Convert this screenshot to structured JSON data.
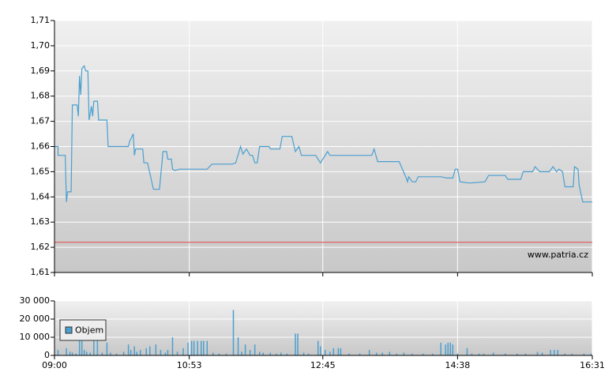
{
  "chart_data": [
    {
      "type": "line",
      "annotation": "www.patria.cz",
      "x": [
        540,
        543,
        543,
        549,
        550,
        551,
        554,
        555,
        559,
        560,
        561,
        562,
        563,
        565,
        566,
        568,
        569,
        571,
        572,
        573,
        576,
        577,
        584,
        585,
        602,
        603,
        606,
        607,
        608,
        614,
        615,
        618,
        623,
        628,
        631,
        634,
        635,
        638,
        639,
        641,
        645,
        668,
        672,
        689,
        692,
        696,
        698,
        701,
        704,
        706,
        708,
        710,
        712,
        720,
        721,
        729,
        731,
        739,
        742,
        745,
        747,
        759,
        763,
        769,
        771,
        806,
        808,
        811,
        829,
        835,
        836,
        837,
        840,
        843,
        845,
        864,
        869,
        874,
        876,
        878,
        880,
        888,
        901,
        904,
        918,
        920,
        931,
        933,
        941,
        943,
        947,
        955,
        958,
        961,
        963,
        966,
        968,
        975,
        976,
        979,
        980,
        983,
        991
      ],
      "series": [
        {
          "color": "#4a9fd0",
          "values": [
            1.66,
            1.66,
            1.6565,
            1.6565,
            1.638,
            1.642,
            1.642,
            1.6765,
            1.6765,
            1.672,
            1.688,
            1.6805,
            1.691,
            1.692,
            1.69,
            1.69,
            1.6705,
            1.676,
            1.672,
            1.678,
            1.678,
            1.6705,
            1.6705,
            1.66,
            1.66,
            1.662,
            1.665,
            1.6565,
            1.659,
            1.659,
            1.6535,
            1.6535,
            1.643,
            1.643,
            1.658,
            1.658,
            1.655,
            1.655,
            1.651,
            1.6505,
            1.651,
            1.651,
            1.653,
            1.653,
            1.6535,
            1.66,
            1.657,
            1.659,
            1.6565,
            1.6565,
            1.6535,
            1.6535,
            1.66,
            1.66,
            1.659,
            1.659,
            1.664,
            1.664,
            1.658,
            1.66,
            1.6565,
            1.6565,
            1.6535,
            1.658,
            1.6565,
            1.6565,
            1.659,
            1.654,
            1.654,
            1.6475,
            1.646,
            1.648,
            1.646,
            1.646,
            1.648,
            1.648,
            1.6475,
            1.6475,
            1.651,
            1.651,
            1.646,
            1.6455,
            1.646,
            1.6485,
            1.6485,
            1.647,
            1.647,
            1.65,
            1.65,
            1.652,
            1.65,
            1.65,
            1.652,
            1.65,
            1.651,
            1.65,
            1.644,
            1.644,
            1.652,
            1.651,
            1.6445,
            1.638,
            1.638
          ]
        }
      ],
      "reference_line": 1.622,
      "reference_color": "#e06060",
      "xlim": [
        540,
        991
      ],
      "ylim": [
        1.61,
        1.71
      ],
      "yticks": [
        {
          "value": 1.61,
          "label": "1,61"
        },
        {
          "value": 1.62,
          "label": "1,62"
        },
        {
          "value": 1.63,
          "label": "1,63"
        },
        {
          "value": 1.64,
          "label": "1,64"
        },
        {
          "value": 1.65,
          "label": "1,65"
        },
        {
          "value": 1.66,
          "label": "1,66"
        },
        {
          "value": 1.67,
          "label": "1,67"
        },
        {
          "value": 1.68,
          "label": "1,68"
        },
        {
          "value": 1.69,
          "label": "1,69"
        },
        {
          "value": 1.7,
          "label": "1,70"
        },
        {
          "value": 1.71,
          "label": "1,71"
        }
      ],
      "grid": true
    },
    {
      "type": "bar",
      "x": [
        543,
        550,
        553,
        555,
        558,
        561,
        563,
        565,
        567,
        570,
        573,
        576,
        580,
        584,
        587,
        592,
        598,
        602,
        604,
        607,
        609,
        612,
        617,
        620,
        625,
        629,
        633,
        635,
        639,
        643,
        648,
        652,
        655,
        657,
        660,
        663,
        665,
        668,
        673,
        678,
        684,
        690,
        694,
        697,
        700,
        704,
        708,
        712,
        715,
        721,
        726,
        730,
        735,
        742,
        744,
        749,
        753,
        761,
        763,
        767,
        771,
        774,
        778,
        780,
        787,
        796,
        804,
        810,
        815,
        821,
        827,
        833,
        840,
        849,
        857,
        864,
        868,
        870,
        872,
        874,
        878,
        886,
        890,
        896,
        900,
        908,
        918,
        928,
        935,
        945,
        949,
        956,
        959,
        962,
        968,
        974,
        984,
        990
      ],
      "series": [
        {
          "name": "Objem",
          "color": "#4a9fd0",
          "values": [
            3000,
            4000,
            2000,
            1500,
            1000,
            8000,
            8000,
            3000,
            2000,
            1500,
            8000,
            8000,
            1500,
            7000,
            1500,
            1000,
            2000,
            6000,
            3000,
            5000,
            2000,
            3000,
            4000,
            5000,
            6000,
            3000,
            1500,
            3000,
            10000,
            2000,
            4000,
            7000,
            8000,
            8000,
            8000,
            8000,
            8000,
            8000,
            1500,
            1000,
            1000,
            25000,
            10000,
            2000,
            6000,
            3000,
            6000,
            2000,
            1500,
            1500,
            1000,
            1500,
            1000,
            12000,
            12000,
            1500,
            1000,
            8000,
            5000,
            3000,
            2000,
            4000,
            4000,
            4000,
            1000,
            1000,
            3000,
            1500,
            1500,
            2000,
            1000,
            1500,
            1000,
            1000,
            1000,
            7000,
            6000,
            7000,
            7000,
            6000,
            1000,
            4000,
            1000,
            1000,
            1000,
            1500,
            1000,
            1000,
            1000,
            2000,
            1500,
            3000,
            3000,
            3000,
            1000,
            1000,
            1000,
            1000
          ]
        }
      ],
      "xlim": [
        540,
        991
      ],
      "xticks": [
        {
          "value": 540,
          "label": "09:00"
        },
        {
          "value": 653,
          "label": "10:53"
        },
        {
          "value": 765,
          "label": "12:45"
        },
        {
          "value": 878,
          "label": "14:38"
        },
        {
          "value": 991,
          "label": "16:31"
        }
      ],
      "ylim": [
        0,
        30000
      ],
      "yticks": [
        0,
        {
          "value": 10000,
          "label": "10 000"
        },
        {
          "value": 20000,
          "label": "20 000"
        },
        {
          "value": 30000,
          "label": "30 000"
        }
      ],
      "grid": true
    }
  ]
}
